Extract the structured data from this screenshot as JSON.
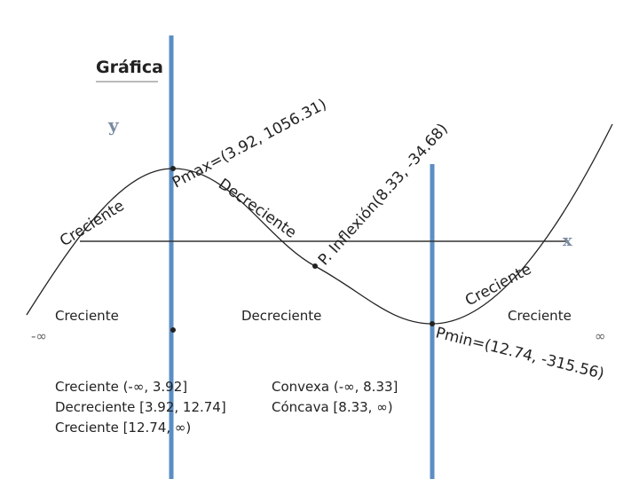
{
  "title": "Gráfica",
  "axes": {
    "y": "y",
    "x": "x"
  },
  "curve_labels": {
    "left": "Creciente",
    "pmax": "Pmax=(3.92, 1056.31)",
    "middle": "Decreciente",
    "inflection": "P. Inflexión(8.33, -34.68)",
    "right": "Creciente",
    "pmin": "Pmin=(12.74, -315.56)"
  },
  "sign_row": {
    "left": "Creciente",
    "middle": "Decreciente",
    "right": "Creciente",
    "minus_infinity": "-∞",
    "plus_infinity": "∞"
  },
  "monotony": [
    "Creciente (-∞, 3.92]",
    "Decreciente [3.92, 12.74]",
    "Creciente [12.74, ∞)"
  ],
  "concavity": [
    "Convexa (-∞, 8.33]",
    "Cóncava [8.33, ∞)"
  ]
}
